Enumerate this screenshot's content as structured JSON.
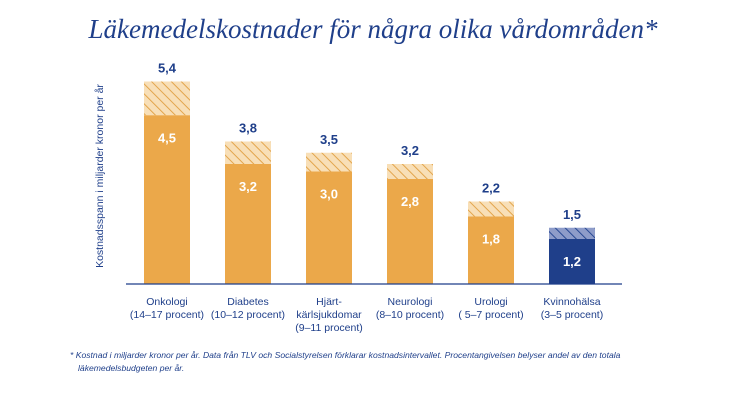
{
  "chart_data": {
    "type": "bar",
    "title": "Läkemedelskostnader för några olika vårdområden*",
    "ylabel": "Kostnadsspann i miljarder kronor per år",
    "xlabel": "",
    "ylim": [
      0,
      6
    ],
    "grid": false,
    "categories": [
      {
        "name": "Onkologi",
        "sub": "(14–17 procent)"
      },
      {
        "name": "Diabetes",
        "sub": "(10–12 procent)"
      },
      {
        "name": "Hjärt-",
        "name2": "kärlsjukdomar",
        "sub": "(9–11 procent)"
      },
      {
        "name": "Neurologi",
        "sub": "(8–10 procent)"
      },
      {
        "name": "Urologi",
        "sub": "( 5–7 procent)"
      },
      {
        "name": "Kvinnohälsa",
        "sub": "(3–5 procent)"
      }
    ],
    "series": [
      {
        "values": [
          4.5,
          3.2,
          3.0,
          2.8,
          1.8,
          1.2
        ],
        "labels": [
          "4,5",
          "3,2",
          "3,0",
          "2,8",
          "1,8",
          "1,2"
        ]
      },
      {
        "values": [
          5.4,
          3.8,
          3.5,
          3.2,
          2.2,
          1.5
        ],
        "labels": [
          "5,4",
          "3,8",
          "3,5",
          "3,2",
          "2,2",
          "1,5"
        ]
      }
    ],
    "colors": {
      "bar": "#eba84a",
      "bar_hatch_bg": "#f8dfb7",
      "bar_hatch_line": "#e3a54c",
      "highlight_bar": "#1f3f8a",
      "highlight_hatch_bg": "#8e9cc9",
      "highlight_hatch_line": "#2a4a94",
      "axis": "#1f3f8a",
      "text": "#1f3f8a"
    },
    "highlight_index": 5
  },
  "footnote": {
    "line1": "* Kostnad i miljarder kronor per år. Data från TLV och Socialstyrelsen förklarar kostnadsintervallet. Procentangivelsen belyser andel av den totala",
    "line2": "läkemedelsbudgeten per år."
  }
}
